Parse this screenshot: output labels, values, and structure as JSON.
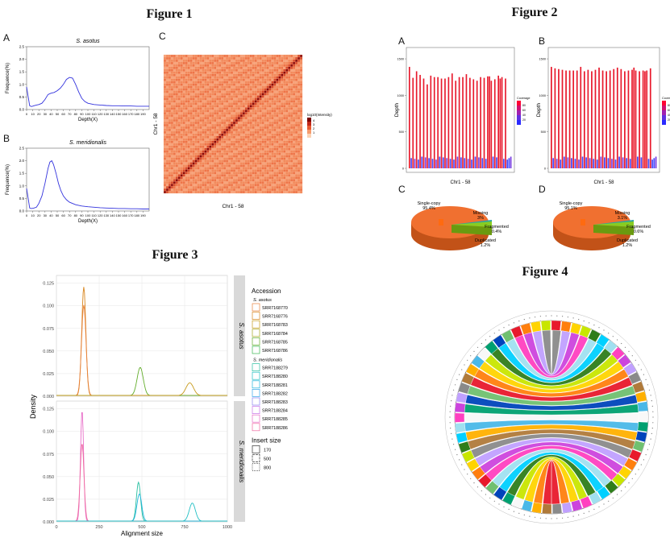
{
  "figures": {
    "f1": {
      "title": "Figure 1"
    },
    "f2": {
      "title": "Figure 2"
    },
    "f3": {
      "title": "Figure 3"
    },
    "f4": {
      "title": "Figure 4"
    }
  },
  "panel_labels": {
    "f1a": "A",
    "f1b": "B",
    "f1c": "C",
    "f2a": "A",
    "f2b": "B",
    "f2c": "C",
    "f2d": "D"
  },
  "colors": {
    "blue_line": "#3333dd",
    "heat_hi": "#8b0000",
    "heat_lo": "#f5a070",
    "red_bar": "#e8192c",
    "blue_bar": "#4444ff",
    "pie_main": "#f07030",
    "pie_green": "#88cc22",
    "pie_teal": "#2aa3a3"
  },
  "chart_data": [
    {
      "id": "fig1A",
      "type": "line",
      "title": "S. asotus",
      "xlabel": "Depth(X)",
      "ylabel": "Frequence(%)",
      "xlim": [
        0,
        200
      ],
      "ylim": [
        0,
        2.5
      ],
      "xticks": [
        0,
        10,
        20,
        30,
        40,
        50,
        60,
        70,
        80,
        90,
        100,
        110,
        120,
        130,
        140,
        150,
        160,
        170,
        180,
        190
      ],
      "yticks": [
        0,
        0.5,
        1.0,
        1.5,
        2.0,
        2.5
      ],
      "ytick_labels": [
        "0.0",
        "0.5",
        "1.0",
        "1.5",
        "2.0",
        "2.5"
      ],
      "x": [
        0,
        2,
        5,
        8,
        12,
        16,
        20,
        25,
        30,
        35,
        40,
        45,
        50,
        55,
        60,
        65,
        70,
        75,
        80,
        85,
        90,
        95,
        100,
        110,
        120,
        130,
        140,
        150,
        160,
        170,
        180,
        190,
        200
      ],
      "y": [
        0.9,
        0.6,
        0.15,
        0.12,
        0.15,
        0.18,
        0.2,
        0.25,
        0.4,
        0.6,
        0.65,
        0.68,
        0.75,
        0.85,
        1.0,
        1.2,
        1.28,
        1.25,
        1.0,
        0.7,
        0.45,
        0.32,
        0.25,
        0.2,
        0.18,
        0.16,
        0.15,
        0.15,
        0.14,
        0.14,
        0.13,
        0.13,
        0.13
      ]
    },
    {
      "id": "fig1B",
      "type": "line",
      "title": "S. meridionalis",
      "xlabel": "Depth(X)",
      "ylabel": "Frequence(%)",
      "xlim": [
        0,
        200
      ],
      "ylim": [
        0,
        2.5
      ],
      "xticks": [
        0,
        10,
        20,
        30,
        40,
        50,
        60,
        70,
        80,
        90,
        100,
        110,
        120,
        130,
        140,
        150,
        160,
        170,
        180,
        190
      ],
      "yticks": [
        0,
        0.5,
        1.0,
        1.5,
        2.0,
        2.5
      ],
      "ytick_labels": [
        "0.0",
        "0.5",
        "1.0",
        "1.5",
        "2.0",
        "2.5"
      ],
      "x": [
        0,
        2,
        5,
        8,
        12,
        16,
        20,
        25,
        30,
        35,
        38,
        41,
        44,
        48,
        52,
        56,
        60,
        65,
        70,
        80,
        90,
        100,
        110,
        120,
        130,
        140,
        150,
        160,
        170,
        180,
        190,
        200
      ],
      "y": [
        0.9,
        0.6,
        0.12,
        0.1,
        0.12,
        0.15,
        0.3,
        0.6,
        1.1,
        1.7,
        1.95,
        2.0,
        1.85,
        1.5,
        1.1,
        0.8,
        0.6,
        0.45,
        0.35,
        0.25,
        0.2,
        0.17,
        0.15,
        0.13,
        0.12,
        0.11,
        0.1,
        0.1,
        0.09,
        0.09,
        0.08,
        0.08
      ]
    },
    {
      "id": "fig1C",
      "type": "heatmap",
      "xlabel": "Chr1 - 58",
      "ylabel": "Chr1 - 58",
      "legend_title": "log10(Intensity)",
      "legend_values": [
        "4",
        "3",
        "2",
        "1"
      ],
      "n_bins": 58
    },
    {
      "id": "fig2A",
      "type": "bar",
      "xlabel": "Chr1 - 58",
      "ylabel": "Depth",
      "legend_title": "Coverage",
      "legend_values": [
        "80",
        "60",
        "40",
        "20"
      ],
      "yticks": [
        0,
        500,
        1000,
        1500
      ],
      "ytick_labels": [
        "0",
        "500",
        "1000",
        "1500"
      ],
      "tall_values": [
        1390,
        1240,
        1330,
        1280,
        1230,
        1150,
        1270,
        1250,
        1250,
        1230,
        1230,
        1250,
        1300,
        1200,
        1250,
        1250,
        1290,
        1240,
        1220,
        1200,
        1250,
        1240,
        1260,
        1260,
        1200,
        1220,
        1270,
        1230,
        1250,
        1230
      ]
    },
    {
      "id": "fig2B",
      "type": "bar",
      "xlabel": "Chr1 - 58",
      "ylabel": "Depth",
      "legend_title": "Coverage",
      "legend_values": [
        "80",
        "60",
        "40",
        "20"
      ],
      "yticks": [
        0,
        500,
        1000,
        1500
      ],
      "ytick_labels": [
        "0",
        "500",
        "1000",
        "1500"
      ],
      "tall_values": [
        1390,
        1370,
        1360,
        1350,
        1340,
        1340,
        1340,
        1340,
        1390,
        1330,
        1350,
        1330,
        1350,
        1380,
        1340,
        1330,
        1340,
        1360,
        1380,
        1360,
        1330,
        1340,
        1350,
        1380,
        1340,
        1330,
        1340,
        1330,
        1340,
        1370
      ]
    },
    {
      "id": "fig2C",
      "type": "pie",
      "labels": [
        "Single-copy\n95.4%",
        "Missing\n3%",
        "Fragmented\n0.4%",
        "Duplicated\n1.2%"
      ],
      "values": [
        95.4,
        3,
        0.4,
        1.2
      ]
    },
    {
      "id": "fig2D",
      "type": "pie",
      "labels": [
        "Single-copy\n95.1%",
        "Missing\n3.1%",
        "Fragmented\n0.6%",
        "Duplicated\n1.2%"
      ],
      "values": [
        95.1,
        3.1,
        0.6,
        1.2
      ]
    },
    {
      "id": "fig3",
      "type": "line",
      "xlabel": "Alignment size",
      "ylabel": "Density",
      "xlim": [
        0,
        1000
      ],
      "xticks": [
        0,
        250,
        500,
        750,
        1000
      ],
      "yticks": [
        0,
        0.025,
        0.05,
        0.075,
        0.1,
        0.125
      ],
      "ytick_labels": [
        "0.000",
        "0.025",
        "0.050",
        "0.075",
        "0.100",
        "0.125"
      ],
      "facets": [
        "S. asotus",
        "S. meridionalis"
      ],
      "legend_title": "Accession",
      "legend_groups": [
        {
          "name": "S. asotus",
          "items": [
            {
              "label": "SRR7168770",
              "color": "#e8823c"
            },
            {
              "label": "SRR7168776",
              "color": "#d8861e"
            },
            {
              "label": "SRR7168783",
              "color": "#c79a1a"
            },
            {
              "label": "SRR7168784",
              "color": "#a7a820"
            },
            {
              "label": "SRR7168785",
              "color": "#62ad2a"
            },
            {
              "label": "SRR7168786",
              "color": "#3cb850"
            }
          ]
        },
        {
          "name": "S. meridionalis",
          "items": [
            {
              "label": "SRR7188279",
              "color": "#28bfa0"
            },
            {
              "label": "SRR7188280",
              "color": "#22bfc4"
            },
            {
              "label": "SRR7188281",
              "color": "#22b5dd"
            },
            {
              "label": "SRR7188282",
              "color": "#35a6ea"
            },
            {
              "label": "SRR7188283",
              "color": "#8e86ef"
            },
            {
              "label": "SRR7188284",
              "color": "#c875e8"
            },
            {
              "label": "SRR7188285",
              "color": "#e86ec8"
            },
            {
              "label": "SRR7188286",
              "color": "#f06aa0"
            }
          ]
        }
      ],
      "insert_size_title": "Insert size",
      "insert_sizes": [
        "170",
        "500",
        "800"
      ],
      "peaks_asotus": [
        {
          "center": 160,
          "height": 0.12,
          "width": 12,
          "color": "#d8861e"
        },
        {
          "center": 160,
          "height": 0.1,
          "width": 13,
          "color": "#e8823c"
        },
        {
          "center": 490,
          "height": 0.031,
          "width": 18,
          "color": "#62ad2a"
        },
        {
          "center": 780,
          "height": 0.014,
          "width": 22,
          "color": "#c79a1a"
        }
      ],
      "peaks_meridionalis": [
        {
          "center": 150,
          "height": 0.123,
          "width": 9,
          "color": "#e86ec8"
        },
        {
          "center": 150,
          "height": 0.086,
          "width": 11,
          "color": "#f06aa0"
        },
        {
          "center": 480,
          "height": 0.043,
          "width": 12,
          "color": "#28bfa0"
        },
        {
          "center": 485,
          "height": 0.03,
          "width": 14,
          "color": "#22b5dd"
        },
        {
          "center": 795,
          "height": 0.02,
          "width": 18,
          "color": "#22bfc4"
        }
      ]
    }
  ]
}
